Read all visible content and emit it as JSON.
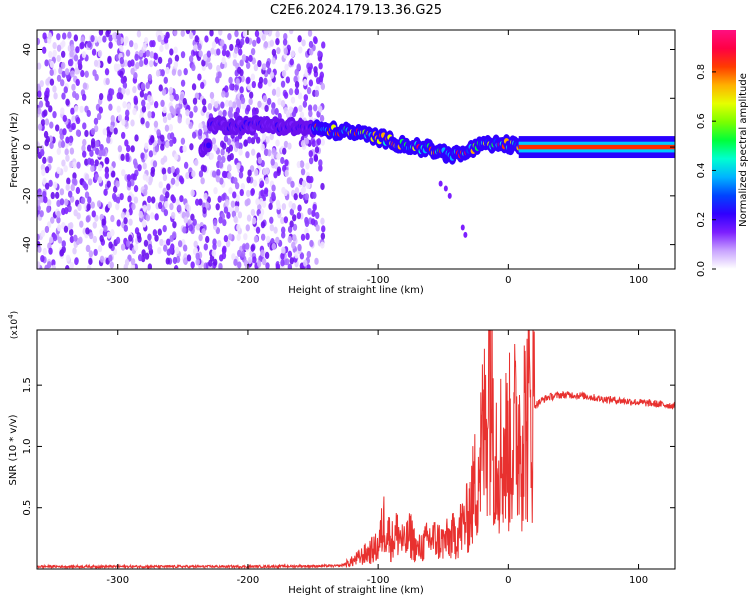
{
  "title": "C2E6.2024.179.13.36.G25",
  "chart_data": [
    {
      "type": "heatmap",
      "xlabel": "Height of straight line (km)",
      "ylabel": "Frequency (Hz)",
      "xlim": [
        -362,
        128
      ],
      "ylim": [
        -50,
        48
      ],
      "xticks": [
        -300,
        -200,
        -100,
        0,
        100
      ],
      "yticks": [
        -40,
        -20,
        0,
        20,
        40
      ],
      "colorbar": {
        "label": "Normalized spectral amplitude",
        "range": [
          0,
          0.97
        ],
        "ticks": [
          "0.0",
          "0.2",
          "0.4",
          "0.6",
          "0.8"
        ],
        "colors": [
          "#ffffff",
          "#c9a3ff",
          "#7c1fff",
          "#3000ff",
          "#0044ff",
          "#00b4ff",
          "#00ffd0",
          "#00ff3a",
          "#7cff00",
          "#e6ff00",
          "#ffb000",
          "#ff3c00",
          "#ff0044",
          "#ff0f80"
        ]
      },
      "regions": [
        {
          "name": "noise",
          "x_range": [
            -362,
            -142
          ],
          "freq_range": [
            -50,
            48
          ],
          "amplitude": "0.0-0.15"
        },
        {
          "name": "signal",
          "track": [
            [
              -230,
              9
            ],
            [
              -200,
              9
            ],
            [
              -180,
              9
            ],
            [
              -160,
              8
            ],
            [
              -140,
              7
            ],
            [
              -120,
              6
            ],
            [
              -100,
              4
            ],
            [
              -80,
              1
            ],
            [
              -60,
              -1
            ],
            [
              -45,
              -3
            ],
            [
              -35,
              -3
            ],
            [
              -25,
              0
            ],
            [
              -10,
              1
            ],
            [
              0,
              1
            ],
            [
              10,
              0
            ],
            [
              128,
              0
            ]
          ],
          "amplitude_peak": 0.97
        }
      ]
    },
    {
      "type": "line",
      "xlabel": "Height of straight line (km)",
      "ylabel": "SNR (10 * v/v)",
      "y_multiplier": "(x10^4)",
      "xlim": [
        -362,
        128
      ],
      "ylim": [
        0,
        1.95
      ],
      "xticks": [
        -300,
        -200,
        -100,
        0,
        100
      ],
      "yticks": [
        "0.5",
        "1.0",
        "1.5"
      ],
      "series": [
        {
          "color": "#e8312f",
          "x": [
            -362,
            -300,
            -200,
            -130,
            -122,
            -110,
            -100,
            -95,
            -90,
            -85,
            -80,
            -75,
            -70,
            -60,
            -50,
            -40,
            -32,
            -27,
            -22,
            -17,
            -15,
            -10,
            -5,
            0,
            5,
            10,
            15,
            20,
            25,
            30,
            40,
            50,
            60,
            70,
            80,
            90,
            100,
            110,
            120,
            128
          ],
          "y": [
            0.02,
            0.02,
            0.02,
            0.025,
            0.05,
            0.12,
            0.18,
            0.4,
            0.22,
            0.3,
            0.2,
            0.28,
            0.15,
            0.25,
            0.22,
            0.28,
            0.4,
            0.6,
            0.9,
            1.2,
            1.9,
            1.05,
            0.95,
            1.0,
            1.1,
            1.15,
            1.25,
            1.33,
            1.37,
            1.4,
            1.42,
            1.42,
            1.41,
            1.39,
            1.38,
            1.37,
            1.36,
            1.35,
            1.34,
            1.33
          ]
        }
      ]
    }
  ]
}
